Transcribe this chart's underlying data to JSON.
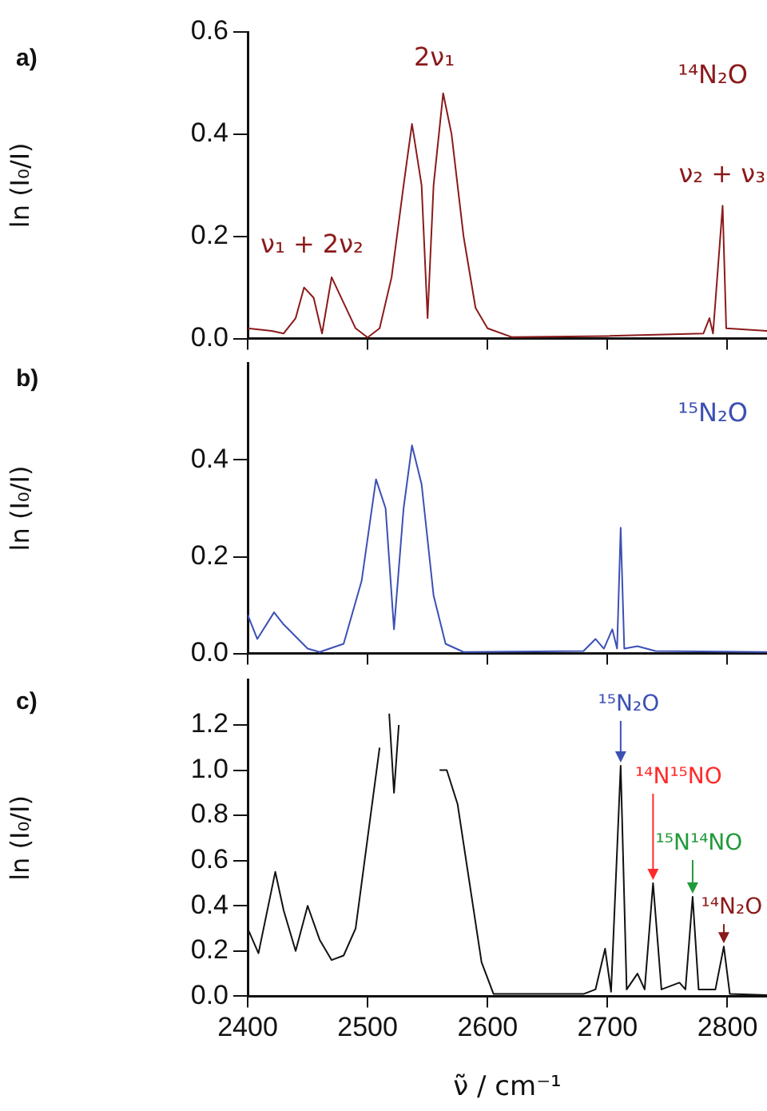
{
  "chart_data": [
    {
      "type": "line",
      "ylabel": "ln (I₀/I)",
      "xlim": [
        2400,
        2833
      ],
      "xticks": [
        2400,
        2500,
        2600,
        2700,
        2800
      ],
      "ylim": [
        0,
        0.6
      ],
      "yticks": [
        {
          "value": 0,
          "label": "0.0"
        },
        {
          "value": 0.2,
          "label": "0.2"
        },
        {
          "value": 0.4,
          "label": "0.4"
        },
        {
          "value": 0.6,
          "label": "0.6"
        }
      ],
      "tick_labels": "y",
      "x": [
        2400,
        2420,
        2430,
        2440,
        2447,
        2455,
        2462,
        2470,
        2480,
        2490,
        2500,
        2510,
        2520,
        2530,
        2537,
        2545,
        2550,
        2555,
        2563,
        2570,
        2580,
        2590,
        2600,
        2620,
        2700,
        2780,
        2785,
        2788,
        2796,
        2799,
        2833
      ],
      "series": [
        {
          "color": "#8b1a1a",
          "values": [
            0.02,
            0.015,
            0.01,
            0.04,
            0.1,
            0.08,
            0.01,
            0.12,
            0.07,
            0.02,
            0.002,
            0.02,
            0.12,
            0.3,
            0.42,
            0.3,
            0.04,
            0.3,
            0.48,
            0.4,
            0.2,
            0.06,
            0.02,
            0.003,
            0.005,
            0.01,
            0.04,
            0.01,
            0.26,
            0.02,
            0.015
          ]
        }
      ],
      "annotations": [
        "a)",
        "ν₁ + 2ν₂",
        "2ν₁",
        "¹⁴N₂O",
        "ν₂ + ν₃"
      ]
    },
    {
      "type": "line",
      "ylabel": "ln (I₀/I)",
      "xlim": [
        2400,
        2833
      ],
      "xticks": [
        2400,
        2500,
        2600,
        2700,
        2800
      ],
      "ylim": [
        0,
        0.6
      ],
      "yticks": [
        {
          "value": 0,
          "label": "0.0"
        },
        {
          "value": 0.2,
          "label": "0.2"
        },
        {
          "value": 0.4,
          "label": "0.4"
        }
      ],
      "tick_labels": "y",
      "x": [
        2400,
        2408,
        2422,
        2430,
        2450,
        2460,
        2480,
        2495,
        2507,
        2515,
        2522,
        2530,
        2537,
        2545,
        2555,
        2565,
        2580,
        2680,
        2690,
        2697,
        2704,
        2708,
        2711,
        2714,
        2725,
        2740,
        2833
      ],
      "series": [
        {
          "color": "#3c50b4",
          "values": [
            0.08,
            0.03,
            0.085,
            0.06,
            0.01,
            0.003,
            0.02,
            0.15,
            0.36,
            0.3,
            0.05,
            0.3,
            0.43,
            0.35,
            0.12,
            0.02,
            0.003,
            0.005,
            0.03,
            0.01,
            0.05,
            0.01,
            0.26,
            0.01,
            0.015,
            0.005,
            0.003
          ]
        }
      ],
      "annotations": [
        "b)",
        "¹⁵N₂O"
      ]
    },
    {
      "type": "line",
      "ylabel": "ln (I₀/I)",
      "xlabel": "ν̃ / cm⁻¹",
      "xlim": [
        2400,
        2833
      ],
      "xticks": [
        2400,
        2500,
        2600,
        2700,
        2800
      ],
      "ylim": [
        0,
        1.4
      ],
      "yticks": [
        {
          "value": 0,
          "label": "0.0"
        },
        {
          "value": 0.2,
          "label": "0.2"
        },
        {
          "value": 0.4,
          "label": "0.4"
        },
        {
          "value": 0.6,
          "label": "0.6"
        },
        {
          "value": 0.8,
          "label": "0.8"
        },
        {
          "value": 1,
          "label": "1.0"
        },
        {
          "value": 1.2,
          "label": "1.2"
        }
      ],
      "x": [
        2400,
        2409,
        2423,
        2430,
        2440,
        2450,
        2460,
        2470,
        2480,
        2490,
        2500,
        2510,
        2515,
        2518,
        2522,
        2526,
        2530,
        2550,
        2560,
        2566,
        2575,
        2585,
        2595,
        2605,
        2680,
        2690,
        2698,
        2703,
        2711,
        2716,
        2725,
        2731,
        2738,
        2745,
        2760,
        2765,
        2771,
        2776,
        2790,
        2797,
        2802,
        2833
      ],
      "series": [
        {
          "color": "#111111",
          "values": [
            0.3,
            0.19,
            0.55,
            0.38,
            0.2,
            0.4,
            0.25,
            0.16,
            0.18,
            0.3,
            0.7,
            1.1,
            null,
            1.25,
            0.9,
            1.2,
            null,
            null,
            1.0,
            1.0,
            0.85,
            0.5,
            0.15,
            0.01,
            0.01,
            0.03,
            0.21,
            0.02,
            1.02,
            0.03,
            0.1,
            0.03,
            0.5,
            0.03,
            0.06,
            0.03,
            0.44,
            0.03,
            0.03,
            0.22,
            0.01,
            0.005
          ]
        }
      ],
      "annotations": [
        "c)",
        {
          "text": "¹⁵N₂O",
          "x": 2711,
          "y": 1.02
        },
        {
          "text": "¹⁴N¹⁵NO",
          "x": 2738,
          "y": 0.5
        },
        {
          "text": "¹⁵N¹⁴NO",
          "x": 2771,
          "y": 0.44
        },
        {
          "text": "¹⁴N₂O",
          "x": 2797,
          "y": 0.22
        }
      ]
    }
  ]
}
